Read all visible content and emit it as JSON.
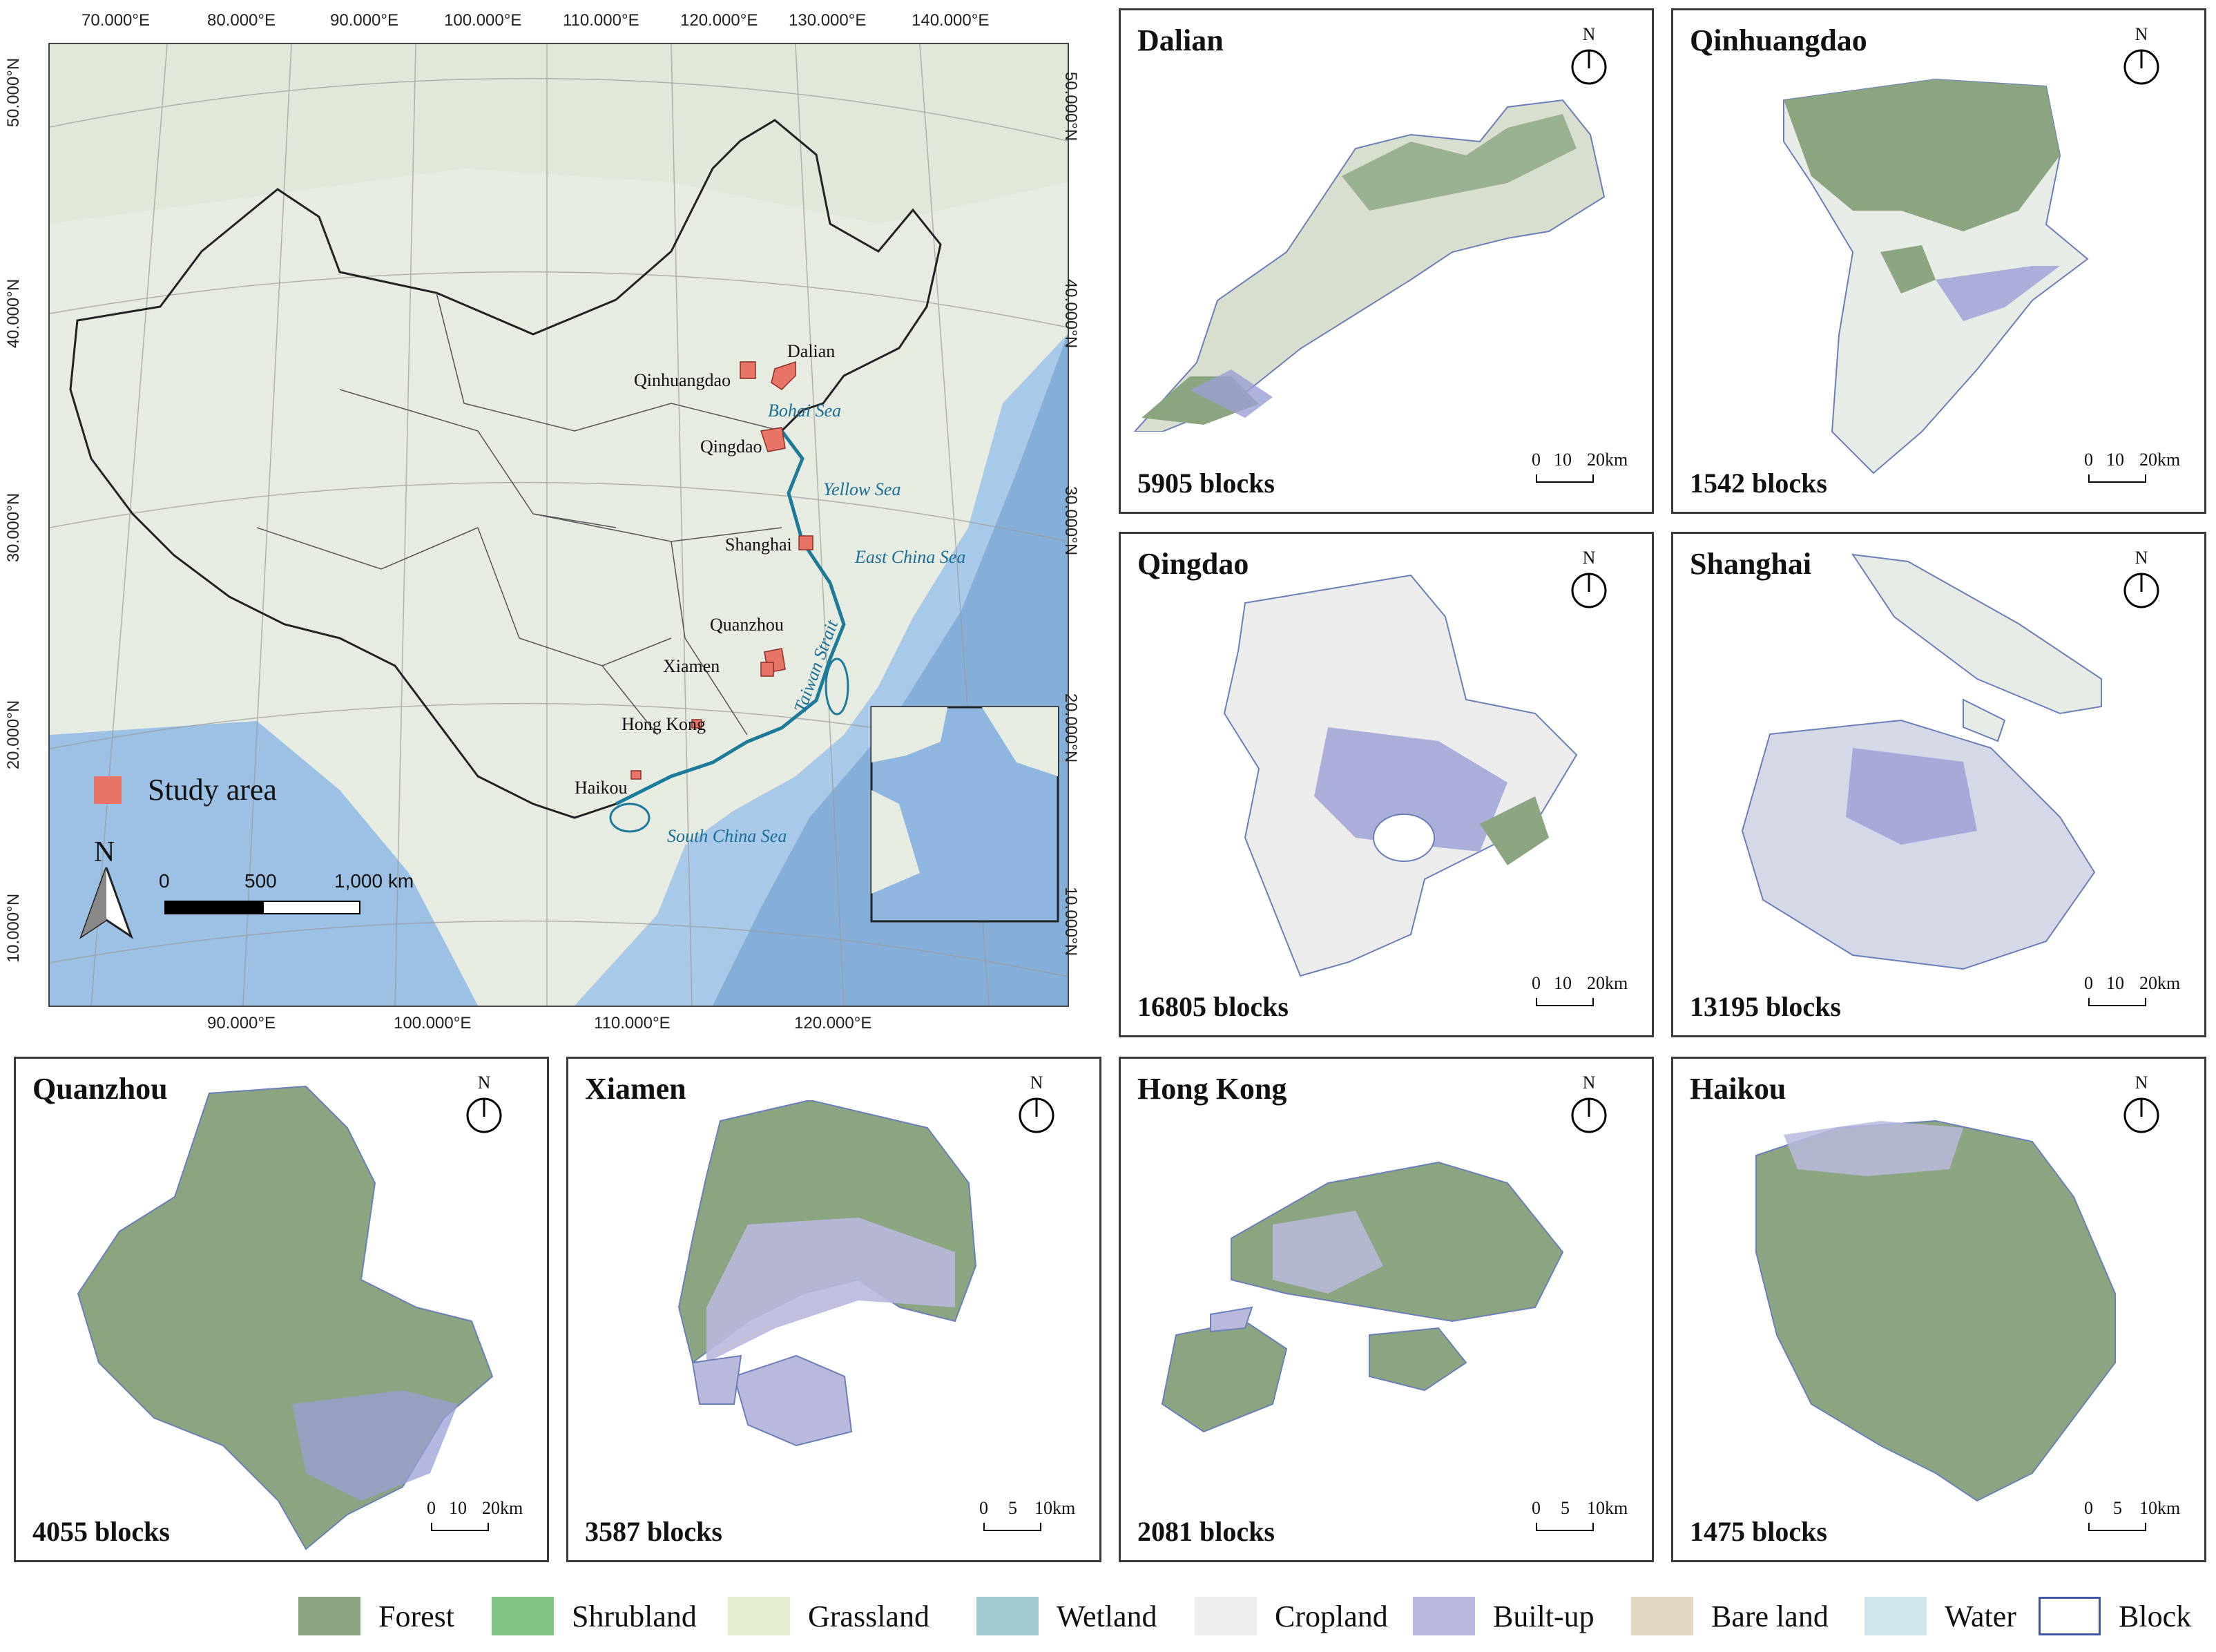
{
  "main_map": {
    "top_lon_labels": [
      "70.000°E",
      "80.000°E",
      "90.000°E",
      "100.000°E",
      "110.000°E",
      "120.000°E",
      "130.000°E",
      "140.000°E"
    ],
    "bottom_lon_labels": [
      "90.000°E",
      "100.000°E",
      "110.000°E",
      "120.000°E"
    ],
    "left_lat_labels": [
      "50.000°N",
      "40.000°N",
      "30.000°N",
      "20.000°N",
      "10.000°N"
    ],
    "right_lat_labels": [
      "50.000°N",
      "40.000°N",
      "30.000°N",
      "20.000°N",
      "10.000°N"
    ],
    "cities": [
      "Dalian",
      "Qinhuangdao",
      "Qingdao",
      "Shanghai",
      "Quanzhou",
      "Xiamen",
      "Hong Kong",
      "Haikou"
    ],
    "seas": [
      "Bohai Sea",
      "Yellow Sea",
      "East China Sea",
      "Taiwan Strait",
      "South China Sea"
    ],
    "legend_label": "Study area",
    "north_label": "N",
    "scale_labels": [
      "0",
      "500",
      "1,000 km"
    ],
    "colors": {
      "ocean": "#a9c9e8",
      "land": "#e8ede5",
      "study_area": "#e87468",
      "coast": "#1d7a99"
    }
  },
  "panels": [
    {
      "title": "Dalian",
      "count": "5905 blocks",
      "north": "N",
      "scale": [
        "0",
        "10",
        "20km"
      ]
    },
    {
      "title": "Qinhuangdao",
      "count": "1542 blocks",
      "north": "N",
      "scale": [
        "0",
        "10",
        "20km"
      ]
    },
    {
      "title": "Qingdao",
      "count": "16805 blocks",
      "north": "N",
      "scale": [
        "0",
        "10",
        "20km"
      ]
    },
    {
      "title": "Shanghai",
      "count": "13195 blocks",
      "north": "N",
      "scale": [
        "0",
        "10",
        "20km"
      ]
    },
    {
      "title": "Quanzhou",
      "count": "4055 blocks",
      "north": "N",
      "scale": [
        "0",
        "10",
        "20km"
      ]
    },
    {
      "title": "Xiamen",
      "count": "3587 blocks",
      "north": "N",
      "scale": [
        "0",
        "5",
        "10km"
      ]
    },
    {
      "title": "Hong Kong",
      "count": "2081 blocks",
      "north": "N",
      "scale": [
        "0",
        "5",
        "10km"
      ]
    },
    {
      "title": "Haikou",
      "count": "1475 blocks",
      "north": "N",
      "scale": [
        "0",
        "5",
        "10km"
      ]
    }
  ],
  "legend": [
    {
      "label": "Forest",
      "color": "#8aa580"
    },
    {
      "label": "Shrubland",
      "color": "#7fc47f"
    },
    {
      "label": "Grassland",
      "color": "#e4efcd"
    },
    {
      "label": "Wetland",
      "color": "#9fcbd0"
    },
    {
      "label": "Cropland",
      "color": "#eeeeee"
    },
    {
      "label": "Built-up",
      "color": "#b9b8dd"
    },
    {
      "label": "Bare land",
      "color": "#e2d6c4"
    },
    {
      "label": "Water",
      "color": "#cfe6ea"
    },
    {
      "label": "Block",
      "color": "#ffffff"
    }
  ]
}
